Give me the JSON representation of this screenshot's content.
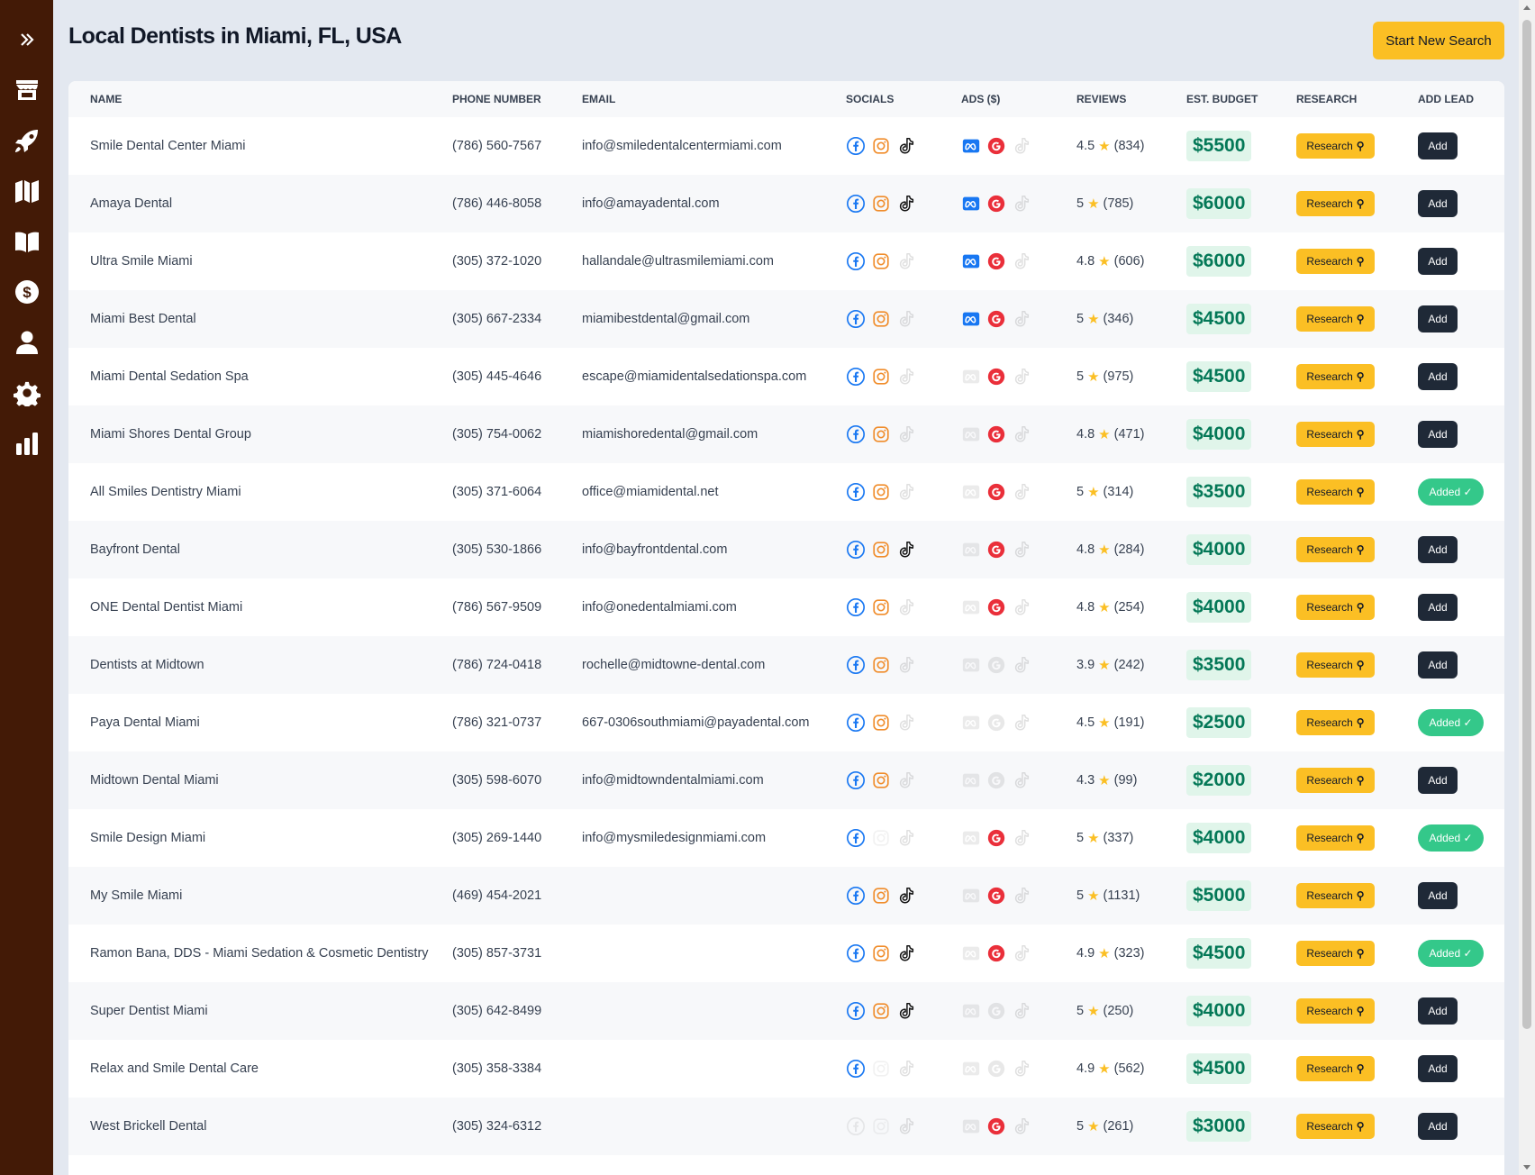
{
  "page": {
    "title": "Local Dentists in Miami, FL, USA",
    "new_search_label": "Start New Search"
  },
  "sidebar": {
    "items": [
      "expand-icon",
      "store-icon",
      "rocket-icon",
      "map-icon",
      "book-icon",
      "dollar-icon",
      "user-icon",
      "gear-icon",
      "chart-icon"
    ]
  },
  "table": {
    "headers": {
      "name": "NAME",
      "phone": "PHONE NUMBER",
      "email": "EMAIL",
      "socials": "SOCIALS",
      "ads": "ADS ($)",
      "reviews": "REVIEWS",
      "budget": "EST. BUDGET",
      "research": "RESEARCH",
      "add_lead": "ADD LEAD"
    },
    "research_label": "Research",
    "add_label": "Add",
    "added_label": "Added ✓",
    "colors": {
      "facebook": "#1877f2",
      "instagram": "#f08c2a",
      "tiktok": "#111111",
      "meta": "#1877f2",
      "google": "#ea2f3a"
    },
    "rows": [
      {
        "name": "Smile Dental Center Miami",
        "phone": "(786) 560-7567",
        "email": "info@smiledentalcentermiami.com",
        "fb": true,
        "ig": true,
        "tt": true,
        "meta": true,
        "google": true,
        "ttads": false,
        "rating": "4.5",
        "count": "(834)",
        "budget": "$5500",
        "added": false
      },
      {
        "name": "Amaya Dental",
        "phone": "(786) 446-8058",
        "email": "info@amayadental.com",
        "fb": true,
        "ig": true,
        "tt": true,
        "meta": true,
        "google": true,
        "ttads": false,
        "rating": "5",
        "count": "(785)",
        "budget": "$6000",
        "added": false
      },
      {
        "name": "Ultra Smile Miami",
        "phone": "(305) 372-1020",
        "email": "hallandale@ultrasmilemiami.com",
        "fb": true,
        "ig": true,
        "tt": false,
        "meta": true,
        "google": true,
        "ttads": false,
        "rating": "4.8",
        "count": "(606)",
        "budget": "$6000",
        "added": false
      },
      {
        "name": "Miami Best Dental",
        "phone": "(305) 667-2334",
        "email": "miamibestdental@gmail.com",
        "fb": true,
        "ig": true,
        "tt": false,
        "meta": true,
        "google": true,
        "ttads": false,
        "rating": "5",
        "count": "(346)",
        "budget": "$4500",
        "added": false
      },
      {
        "name": "Miami Dental Sedation Spa",
        "phone": "(305) 445-4646",
        "email": "escape@miamidentalsedationspa.com",
        "fb": true,
        "ig": true,
        "tt": false,
        "meta": false,
        "google": true,
        "ttads": false,
        "rating": "5",
        "count": "(975)",
        "budget": "$4500",
        "added": false
      },
      {
        "name": "Miami Shores Dental Group",
        "phone": "(305) 754-0062",
        "email": "miamishoredental@gmail.com",
        "fb": true,
        "ig": true,
        "tt": false,
        "meta": false,
        "google": true,
        "ttads": false,
        "rating": "4.8",
        "count": "(471)",
        "budget": "$4000",
        "added": false
      },
      {
        "name": "All Smiles Dentistry Miami",
        "phone": "(305) 371-6064",
        "email": "office@miamidental.net",
        "fb": true,
        "ig": true,
        "tt": false,
        "meta": false,
        "google": true,
        "ttads": false,
        "rating": "5",
        "count": "(314)",
        "budget": "$3500",
        "added": true
      },
      {
        "name": "Bayfront Dental",
        "phone": "(305) 530-1866",
        "email": "info@bayfrontdental.com",
        "fb": true,
        "ig": true,
        "tt": true,
        "meta": false,
        "google": true,
        "ttads": false,
        "rating": "4.8",
        "count": "(284)",
        "budget": "$4000",
        "added": false
      },
      {
        "name": "ONE Dental Dentist Miami",
        "phone": "(786) 567-9509",
        "email": "info@onedentalmiami.com",
        "fb": true,
        "ig": true,
        "tt": false,
        "meta": false,
        "google": true,
        "ttads": false,
        "rating": "4.8",
        "count": "(254)",
        "budget": "$4000",
        "added": false
      },
      {
        "name": "Dentists at Midtown",
        "phone": "(786) 724-0418",
        "email": "rochelle@midtowne-dental.com",
        "fb": true,
        "ig": true,
        "tt": false,
        "meta": false,
        "google": false,
        "ttads": false,
        "rating": "3.9",
        "count": "(242)",
        "budget": "$3500",
        "added": false
      },
      {
        "name": "Paya Dental Miami",
        "phone": "(786) 321-0737",
        "email": "667-0306southmiami@payadental.com",
        "fb": true,
        "ig": true,
        "tt": false,
        "meta": false,
        "google": false,
        "ttads": false,
        "rating": "4.5",
        "count": "(191)",
        "budget": "$2500",
        "added": true
      },
      {
        "name": "Midtown Dental Miami",
        "phone": "(305) 598-6070",
        "email": "info@midtowndentalmiami.com",
        "fb": true,
        "ig": true,
        "tt": false,
        "meta": false,
        "google": false,
        "ttads": false,
        "rating": "4.3",
        "count": "(99)",
        "budget": "$2000",
        "added": false
      },
      {
        "name": "Smile Design Miami",
        "phone": "(305) 269-1440",
        "email": "info@mysmiledesignmiami.com",
        "fb": true,
        "ig": false,
        "tt": false,
        "meta": false,
        "google": true,
        "ttads": false,
        "rating": "5",
        "count": "(337)",
        "budget": "$4000",
        "added": true
      },
      {
        "name": "My Smile Miami",
        "phone": "(469) 454-2021",
        "email": "",
        "fb": true,
        "ig": true,
        "tt": true,
        "meta": false,
        "google": true,
        "ttads": false,
        "rating": "5",
        "count": "(1131)",
        "budget": "$5000",
        "added": false
      },
      {
        "name": "Ramon Bana, DDS - Miami Sedation & Cosmetic Dentistry",
        "phone": "(305) 857-3731",
        "email": "",
        "fb": true,
        "ig": true,
        "tt": true,
        "meta": false,
        "google": true,
        "ttads": false,
        "rating": "4.9",
        "count": "(323)",
        "budget": "$4500",
        "added": true
      },
      {
        "name": "Super Dentist Miami",
        "phone": "(305) 642-8499",
        "email": "",
        "fb": true,
        "ig": true,
        "tt": true,
        "meta": false,
        "google": false,
        "ttads": false,
        "rating": "5",
        "count": "(250)",
        "budget": "$4000",
        "added": false
      },
      {
        "name": "Relax and Smile Dental Care",
        "phone": "(305) 358-3384",
        "email": "",
        "fb": true,
        "ig": false,
        "tt": false,
        "meta": false,
        "google": false,
        "ttads": false,
        "rating": "4.9",
        "count": "(562)",
        "budget": "$4500",
        "added": false
      },
      {
        "name": "West Brickell Dental",
        "phone": "(305) 324-6312",
        "email": "",
        "fb": false,
        "ig": false,
        "tt": false,
        "meta": false,
        "google": true,
        "ttads": false,
        "rating": "5",
        "count": "(261)",
        "budget": "$3000",
        "added": false
      },
      {
        "name": "",
        "phone": "",
        "email": "",
        "fb": false,
        "ig": false,
        "tt": false,
        "meta": false,
        "google": false,
        "ttads": false,
        "rating": "",
        "count": "",
        "budget": "",
        "added": false
      }
    ]
  }
}
